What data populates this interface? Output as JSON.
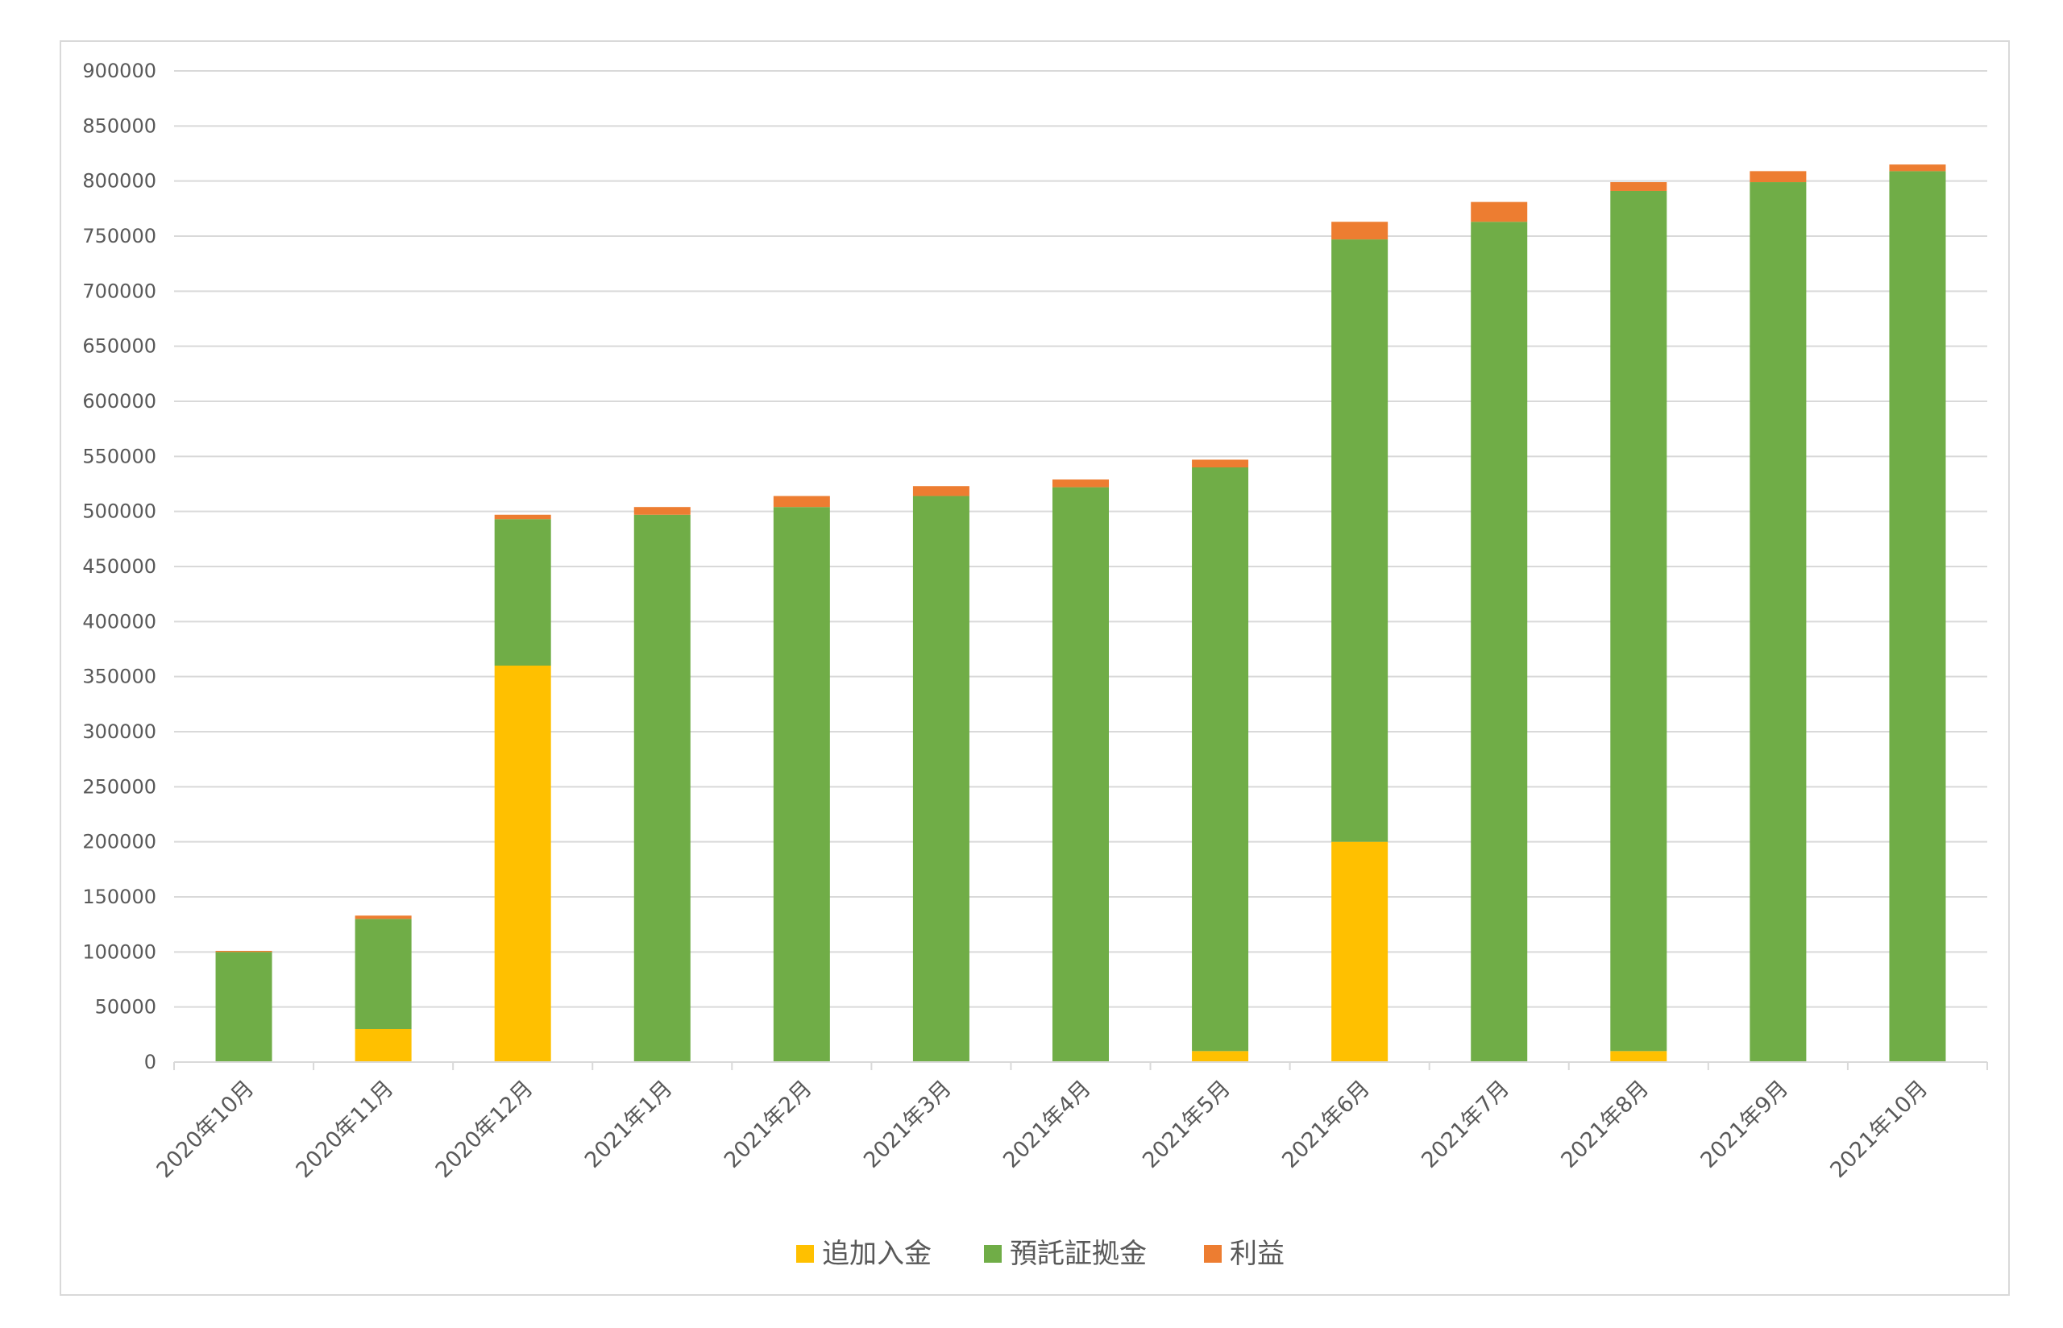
{
  "chart_data": {
    "type": "bar",
    "stacked": true,
    "categories": [
      "2020年10月",
      "2020年11月",
      "2020年12月",
      "2021年1月",
      "2021年2月",
      "2021年3月",
      "2021年4月",
      "2021年5月",
      "2021年6月",
      "2021年7月",
      "2021年8月",
      "2021年9月",
      "2021年10月"
    ],
    "series": [
      {
        "name": "追加入金",
        "color": "#FFC000",
        "values": [
          0,
          30000,
          360000,
          0,
          0,
          0,
          0,
          10000,
          200000,
          0,
          10000,
          0,
          0
        ]
      },
      {
        "name": "預託証拠金",
        "color": "#70AD47",
        "values": [
          100000,
          100000,
          133000,
          497000,
          504000,
          514000,
          522000,
          530000,
          547000,
          763000,
          781000,
          799000,
          809000
        ]
      },
      {
        "name": "利益",
        "color": "#ED7D31",
        "values": [
          1000,
          3000,
          4000,
          7000,
          10000,
          9000,
          7000,
          7000,
          16000,
          18000,
          8000,
          10000,
          6000
        ]
      }
    ],
    "y_ticks": [
      "0",
      "50000",
      "100000",
      "150000",
      "200000",
      "250000",
      "300000",
      "350000",
      "400000",
      "450000",
      "500000",
      "550000",
      "600000",
      "650000",
      "700000",
      "750000",
      "800000",
      "850000",
      "900000"
    ],
    "ylim": [
      0,
      900000
    ],
    "title": "",
    "xlabel": "",
    "ylabel": "",
    "grid": true,
    "legend_position": "bottom"
  }
}
